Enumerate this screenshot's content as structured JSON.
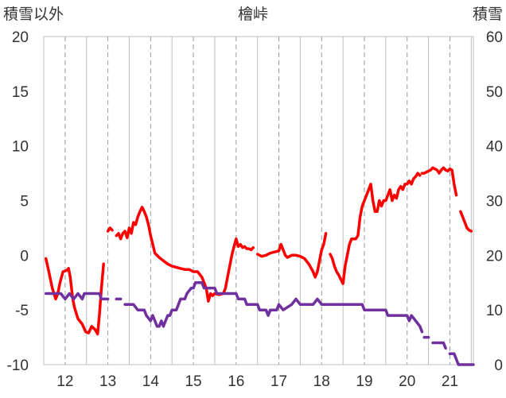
{
  "chart_data": {
    "type": "line",
    "title": "檜峠",
    "ylabel_left": "積雪以外",
    "ylabel_right": "積雪",
    "xlim": [
      11.5,
      21.55
    ],
    "ylim_left": [
      -10,
      20
    ],
    "ylim_right": [
      0,
      60
    ],
    "x_ticks": [
      12,
      13,
      14,
      15,
      16,
      17,
      18,
      19,
      20,
      21
    ],
    "y_ticks_left": [
      -10,
      -5,
      0,
      5,
      10,
      15,
      20
    ],
    "y_ticks_right": [
      0,
      10,
      20,
      30,
      40,
      50,
      60
    ],
    "grid": "vertical dashed",
    "series": [
      {
        "color": "#ff0000",
        "axis": "left",
        "segments": [
          [
            [
              11.55,
              -0.3
            ],
            [
              11.62,
              -1.5
            ],
            [
              11.7,
              -3
            ],
            [
              11.78,
              -4
            ],
            [
              11.83,
              -3.5
            ],
            [
              11.88,
              -2.5
            ],
            [
              11.95,
              -1.5
            ],
            [
              12.03,
              -1.4
            ],
            [
              12.08,
              -1.2
            ],
            [
              12.12,
              -2
            ],
            [
              12.18,
              -4
            ],
            [
              12.22,
              -4.8
            ],
            [
              12.3,
              -5.8
            ],
            [
              12.4,
              -6.3
            ],
            [
              12.48,
              -7
            ],
            [
              12.55,
              -7.1
            ],
            [
              12.62,
              -6.5
            ],
            [
              12.7,
              -6.8
            ],
            [
              12.76,
              -7.2
            ],
            [
              12.8,
              -5.5
            ],
            [
              12.85,
              -3
            ],
            [
              12.9,
              -0.8
            ]
          ],
          [
            [
              13.0,
              2.2
            ],
            [
              13.05,
              2.5
            ],
            [
              13.1,
              2.3
            ]
          ],
          [
            [
              13.2,
              1.8
            ],
            [
              13.25,
              2.0
            ],
            [
              13.3,
              1.5
            ],
            [
              13.35,
              2.0
            ],
            [
              13.4,
              2.2
            ],
            [
              13.45,
              1.6
            ],
            [
              13.5,
              2.5
            ],
            [
              13.55,
              2.0
            ],
            [
              13.6,
              3.0
            ],
            [
              13.65,
              2.8
            ],
            [
              13.7,
              3.5
            ],
            [
              13.75,
              4.0
            ],
            [
              13.8,
              4.4
            ],
            [
              13.85,
              4.0
            ],
            [
              13.9,
              3.5
            ],
            [
              13.95,
              2.8
            ],
            [
              14.0,
              1.8
            ],
            [
              14.05,
              1.0
            ],
            [
              14.1,
              0.2
            ],
            [
              14.2,
              -0.2
            ],
            [
              14.3,
              -0.5
            ],
            [
              14.4,
              -0.8
            ],
            [
              14.5,
              -1.0
            ],
            [
              14.6,
              -1.1
            ],
            [
              14.7,
              -1.2
            ],
            [
              14.8,
              -1.3
            ],
            [
              14.9,
              -1.3
            ],
            [
              15.0,
              -1.5
            ],
            [
              15.1,
              -1.5
            ],
            [
              15.2,
              -2.0
            ],
            [
              15.3,
              -3.0
            ],
            [
              15.35,
              -4.2
            ],
            [
              15.4,
              -3.5
            ],
            [
              15.45,
              -3.7
            ],
            [
              15.5,
              -3.5
            ],
            [
              15.6,
              -3.6
            ],
            [
              15.7,
              -3.5
            ],
            [
              15.75,
              -3.0
            ],
            [
              15.8,
              -2.0
            ],
            [
              15.85,
              -1.0
            ],
            [
              15.9,
              0
            ],
            [
              15.95,
              0.8
            ],
            [
              16.0,
              1.5
            ],
            [
              16.05,
              0.8
            ],
            [
              16.1,
              1.0
            ],
            [
              16.15,
              0.7
            ],
            [
              16.2,
              0.8
            ],
            [
              16.25,
              0.6
            ],
            [
              16.3,
              0.6
            ],
            [
              16.35,
              0.5
            ],
            [
              16.4,
              0.7
            ]
          ],
          [
            [
              16.5,
              0.1
            ],
            [
              16.6,
              -0.1
            ],
            [
              16.7,
              0
            ],
            [
              16.8,
              0.2
            ],
            [
              16.9,
              0.3
            ],
            [
              17.0,
              0.4
            ],
            [
              17.05,
              1.0
            ],
            [
              17.1,
              0.5
            ],
            [
              17.15,
              0
            ],
            [
              17.2,
              -0.2
            ],
            [
              17.3,
              0
            ],
            [
              17.4,
              0
            ],
            [
              17.5,
              -0.1
            ],
            [
              17.6,
              -0.3
            ],
            [
              17.7,
              -0.8
            ],
            [
              17.8,
              -1.5
            ],
            [
              17.85,
              -2.0
            ],
            [
              17.9,
              -1.5
            ],
            [
              17.95,
              -0.5
            ],
            [
              18.0,
              0.5
            ],
            [
              18.05,
              1.0
            ],
            [
              18.1,
              2.0
            ]
          ],
          [
            [
              18.2,
              0.1
            ],
            [
              18.25,
              -0.3
            ],
            [
              18.3,
              -1.0
            ],
            [
              18.35,
              -1.5
            ],
            [
              18.4,
              -1.8
            ],
            [
              18.45,
              -2.2
            ],
            [
              18.5,
              -2.6
            ],
            [
              18.55,
              -1.0
            ],
            [
              18.6,
              0
            ],
            [
              18.65,
              1.0
            ],
            [
              18.7,
              1.5
            ],
            [
              18.8,
              1.5
            ],
            [
              18.85,
              1.8
            ],
            [
              18.9,
              3.5
            ],
            [
              18.95,
              4.5
            ],
            [
              19.0,
              5.0
            ],
            [
              19.05,
              5.5
            ],
            [
              19.1,
              6.0
            ],
            [
              19.15,
              6.5
            ],
            [
              19.2,
              5.0
            ],
            [
              19.25,
              4.0
            ],
            [
              19.3,
              4.0
            ],
            [
              19.35,
              5.0
            ],
            [
              19.4,
              4.5
            ],
            [
              19.45,
              5.0
            ],
            [
              19.5,
              5.0
            ],
            [
              19.55,
              5.5
            ],
            [
              19.6,
              6.0
            ],
            [
              19.65,
              5.0
            ],
            [
              19.7,
              5.5
            ],
            [
              19.75,
              5.2
            ],
            [
              19.8,
              6.0
            ],
            [
              19.85,
              6.3
            ],
            [
              19.9,
              6.0
            ],
            [
              19.95,
              6.5
            ],
            [
              20.0,
              6.5
            ],
            [
              20.05,
              6.8
            ],
            [
              20.1,
              6.5
            ],
            [
              20.15,
              7.0
            ],
            [
              20.2,
              7.2
            ],
            [
              20.25,
              7.5
            ],
            [
              20.3,
              7.3
            ]
          ],
          [
            [
              20.35,
              7.5
            ],
            [
              20.4,
              7.5
            ],
            [
              20.45,
              7.6
            ],
            [
              20.5,
              7.7
            ],
            [
              20.55,
              7.8
            ],
            [
              20.6,
              8.0
            ],
            [
              20.65,
              7.9
            ],
            [
              20.7,
              7.8
            ],
            [
              20.75,
              7.5
            ],
            [
              20.8,
              7.8
            ],
            [
              20.85,
              8.0
            ],
            [
              20.9,
              7.8
            ],
            [
              20.95,
              7.7
            ],
            [
              21.0,
              7.9
            ],
            [
              21.05,
              7.8
            ],
            [
              21.1,
              6.5
            ],
            [
              21.15,
              5.5
            ]
          ],
          [
            [
              21.25,
              4.0
            ],
            [
              21.3,
              3.5
            ],
            [
              21.35,
              3.0
            ],
            [
              21.4,
              2.5
            ],
            [
              21.45,
              2.3
            ],
            [
              21.5,
              2.2
            ]
          ]
        ]
      },
      {
        "color": "#7030a0",
        "axis": "right",
        "segments": [
          [
            [
              11.55,
              13
            ],
            [
              11.9,
              13
            ],
            [
              12.0,
              12
            ],
            [
              12.1,
              13
            ],
            [
              12.2,
              12
            ],
            [
              12.3,
              13
            ],
            [
              12.4,
              12
            ],
            [
              12.45,
              13
            ],
            [
              12.8,
              13
            ],
            [
              12.85,
              12
            ],
            [
              13.0,
              12
            ]
          ],
          [
            [
              13.2,
              12
            ],
            [
              13.3,
              12
            ]
          ],
          [
            [
              13.4,
              11
            ],
            [
              13.6,
              11
            ],
            [
              13.7,
              10
            ],
            [
              13.85,
              10
            ],
            [
              13.9,
              9
            ],
            [
              14.0,
              8
            ],
            [
              14.05,
              9
            ],
            [
              14.1,
              8
            ],
            [
              14.15,
              7
            ],
            [
              14.2,
              7
            ],
            [
              14.25,
              8
            ],
            [
              14.3,
              7
            ],
            [
              14.35,
              8
            ],
            [
              14.4,
              9
            ],
            [
              14.45,
              9
            ],
            [
              14.5,
              10
            ],
            [
              14.6,
              10
            ],
            [
              14.65,
              11
            ],
            [
              14.7,
              12
            ],
            [
              14.8,
              12
            ],
            [
              14.85,
              13
            ],
            [
              14.95,
              14
            ],
            [
              15.0,
              14
            ],
            [
              15.05,
              15
            ],
            [
              15.2,
              15
            ],
            [
              15.25,
              14
            ],
            [
              15.5,
              14
            ],
            [
              15.55,
              13
            ],
            [
              16.0,
              13
            ],
            [
              16.05,
              12
            ],
            [
              16.2,
              12
            ],
            [
              16.25,
              11
            ],
            [
              16.5,
              11
            ],
            [
              16.55,
              10
            ],
            [
              16.7,
              10
            ],
            [
              16.75,
              9
            ],
            [
              16.8,
              10
            ],
            [
              16.95,
              10
            ],
            [
              17.0,
              11
            ],
            [
              17.1,
              10
            ],
            [
              17.3,
              11
            ],
            [
              17.4,
              12
            ],
            [
              17.5,
              11
            ],
            [
              17.6,
              11
            ],
            [
              17.7,
              11
            ],
            [
              17.8,
              11
            ],
            [
              17.9,
              12
            ],
            [
              18.0,
              11
            ],
            [
              18.5,
              11
            ],
            [
              18.95,
              11
            ],
            [
              19.0,
              10
            ],
            [
              19.5,
              10
            ],
            [
              19.55,
              9
            ],
            [
              20.0,
              9
            ],
            [
              20.05,
              8
            ],
            [
              20.1,
              9
            ],
            [
              20.2,
              8
            ],
            [
              20.3,
              7
            ],
            [
              20.35,
              6
            ]
          ],
          [
            [
              20.4,
              5
            ],
            [
              20.5,
              5
            ]
          ],
          [
            [
              20.6,
              4
            ],
            [
              20.85,
              4
            ],
            [
              20.9,
              3
            ]
          ],
          [
            [
              21.0,
              2
            ],
            [
              21.1,
              2
            ],
            [
              21.15,
              1
            ],
            [
              21.2,
              0
            ],
            [
              21.55,
              0
            ]
          ]
        ]
      }
    ]
  }
}
